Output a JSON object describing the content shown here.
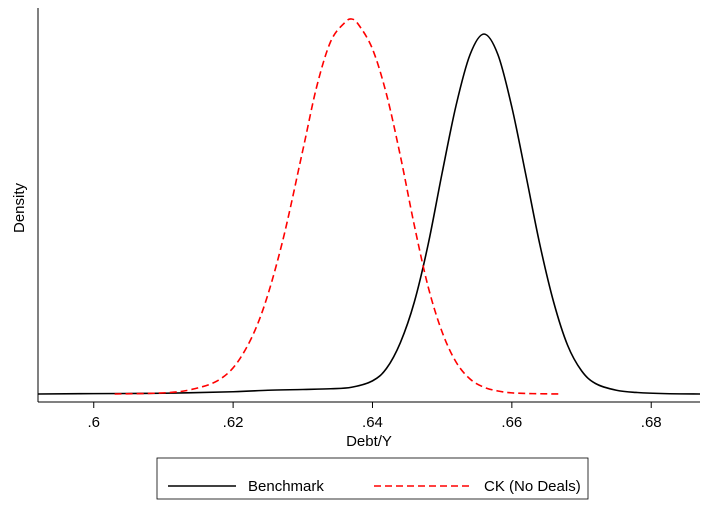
{
  "chart_data": {
    "type": "line",
    "title": "",
    "xlabel": "Debt/Y",
    "ylabel": "Density",
    "xlim": [
      0.592,
      0.687
    ],
    "ylim": [
      0,
      1.0
    ],
    "x_ticks": [
      {
        "value": 0.6,
        "label": ".6"
      },
      {
        "value": 0.62,
        "label": ".62"
      },
      {
        "value": 0.64,
        "label": ".64"
      },
      {
        "value": 0.66,
        "label": ".66"
      },
      {
        "value": 0.68,
        "label": ".68"
      }
    ],
    "y_ticks": [],
    "grid": false,
    "legend_position": "bottom",
    "series": [
      {
        "name": "Benchmark",
        "color": "#000000",
        "dash": "solid",
        "x": [
          0.592,
          0.6,
          0.61,
          0.62,
          0.625,
          0.63,
          0.634,
          0.637,
          0.64,
          0.642,
          0.644,
          0.646,
          0.648,
          0.65,
          0.652,
          0.654,
          0.656,
          0.658,
          0.66,
          0.662,
          0.664,
          0.666,
          0.668,
          0.67,
          0.672,
          0.675,
          0.678,
          0.682,
          0.687
        ],
        "y": [
          0.0,
          0.001,
          0.002,
          0.006,
          0.01,
          0.012,
          0.014,
          0.018,
          0.035,
          0.068,
          0.137,
          0.245,
          0.4,
          0.59,
          0.77,
          0.905,
          0.96,
          0.905,
          0.765,
          0.585,
          0.4,
          0.245,
          0.13,
          0.062,
          0.028,
          0.01,
          0.004,
          0.001,
          0.0
        ]
      },
      {
        "name": "CK (No Deals)",
        "color": "#ff0000",
        "dash": "dashed",
        "x": [
          0.603,
          0.61,
          0.614,
          0.618,
          0.621,
          0.624,
          0.627,
          0.63,
          0.632,
          0.634,
          0.636,
          0.637,
          0.638,
          0.64,
          0.642,
          0.644,
          0.646,
          0.648,
          0.65,
          0.652,
          0.654,
          0.656,
          0.658,
          0.66,
          0.663,
          0.667
        ],
        "y": [
          0.0,
          0.003,
          0.012,
          0.038,
          0.095,
          0.21,
          0.4,
          0.65,
          0.82,
          0.94,
          0.99,
          1.0,
          0.985,
          0.92,
          0.8,
          0.635,
          0.45,
          0.285,
          0.165,
          0.085,
          0.04,
          0.018,
          0.008,
          0.003,
          0.001,
          0.0
        ]
      }
    ]
  }
}
